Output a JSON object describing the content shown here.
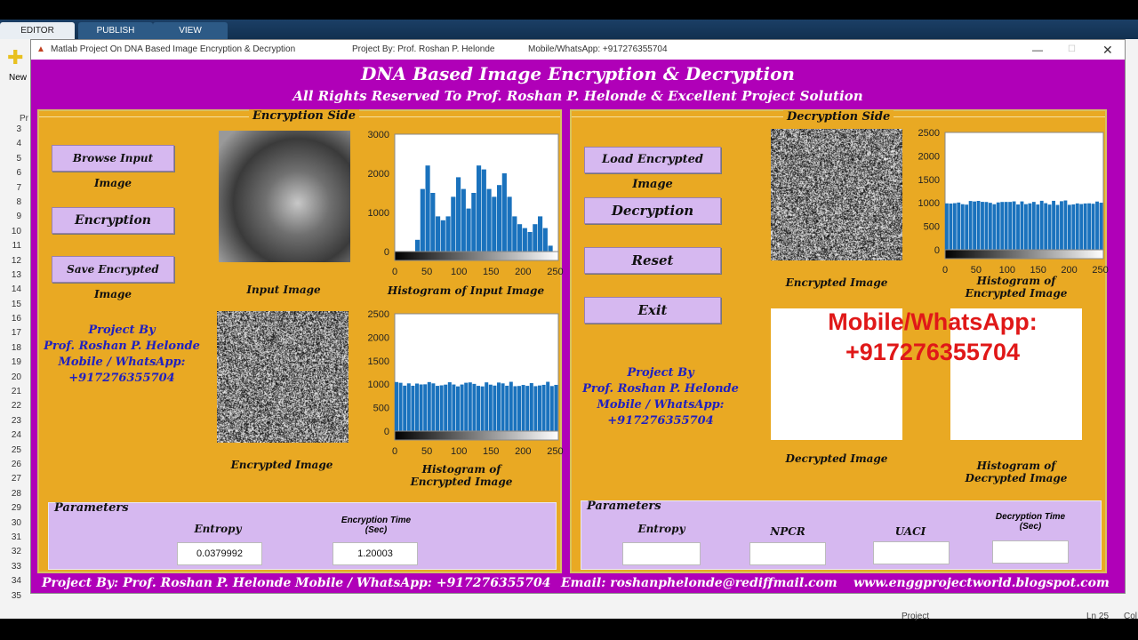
{
  "ide": {
    "tabs": [
      "EDITOR",
      "PUBLISH",
      "VIEW"
    ],
    "new_label": "New",
    "line_numbers": [
      "3",
      "4",
      "5",
      "6",
      "7",
      "8",
      "9",
      "10",
      "11",
      "12",
      "13",
      "14",
      "15",
      "16",
      "17",
      "18",
      "19",
      "20",
      "21",
      "22",
      "23",
      "24",
      "25",
      "26",
      "27",
      "28",
      "29",
      "30",
      "31",
      "32",
      "33",
      "34",
      "35"
    ],
    "status_project": "Project",
    "status_ln": "Ln 25",
    "status_col": "Col",
    "file_tab": "Pr"
  },
  "window": {
    "title": "Matlab Project On DNA Based Image Encryption & Decryption",
    "project_by": "Project By: Prof. Roshan P. Helonde",
    "mobile": "Mobile/WhatsApp: +917276355704"
  },
  "header": {
    "title": "DNA Based Image Encryption & Decryption",
    "subtitle": "All Rights Reserved To Prof. Roshan P. Helonde & Excellent Project Solution"
  },
  "encryption": {
    "title": "Encryption Side",
    "buttons": [
      "Browse Input Image",
      "Encryption",
      "Save Encrypted Image"
    ],
    "input_image_label": "Input Image",
    "input_hist_label": "Histogram of Input Image",
    "enc_image_label": "Encrypted Image",
    "enc_hist_label": "Histogram of Encrypted Image",
    "project_info": [
      "Project By",
      "Prof. Roshan P. Helonde",
      "Mobile / WhatsApp:",
      "+917276355704"
    ],
    "params": {
      "title": "Parameters",
      "entropy_label": "Entropy",
      "entropy_value": "0.0379992",
      "time_label": "Encryption Time (Sec)",
      "time_value": "1.20003"
    }
  },
  "decryption": {
    "title": "Decryption Side",
    "buttons": [
      "Load Encrypted Image",
      "Decryption",
      "Reset",
      "Exit"
    ],
    "enc_image_label": "Encrypted Image",
    "enc_hist_label": "Histogram of Encrypted Image",
    "dec_image_label": "Decrypted Image",
    "dec_hist_label": "Histogram of Decrypted Image",
    "project_info": [
      "Project By",
      "Prof. Roshan P. Helonde",
      "Mobile / WhatsApp:",
      "+917276355704"
    ],
    "watermark": [
      "Mobile/WhatsApp:",
      "+917276355704"
    ],
    "params": {
      "title": "Parameters",
      "entropy_label": "Entropy",
      "npcr_label": "NPCR",
      "uaci_label": "UACI",
      "time_label": "Decryption Time (Sec)",
      "entropy_value": "",
      "npcr_value": "",
      "uaci_value": "",
      "time_value": ""
    }
  },
  "footer": {
    "project": "Project By: Prof. Roshan P. Helonde",
    "mobile": "Mobile / WhatsApp: +917276355704",
    "email": "Email: roshanphelonde@rediffmail.com",
    "web": "www.enggprojectworld.blogspot.com"
  },
  "chart_data": [
    {
      "type": "bar",
      "title": "Histogram of Input Image",
      "xlim": [
        0,
        255
      ],
      "ylim": [
        0,
        3000
      ],
      "xticks": [
        "0",
        "50",
        "100",
        "150",
        "200",
        "250"
      ],
      "yticks": [
        "0",
        "1000",
        "2000",
        "3000"
      ],
      "bar_color": "#1a72bd",
      "values": [
        0,
        0,
        0,
        0,
        300,
        1600,
        2200,
        1500,
        900,
        800,
        900,
        1400,
        1900,
        1600,
        1100,
        1500,
        2200,
        2100,
        1600,
        1400,
        1700,
        2000,
        1400,
        900,
        700,
        600,
        500,
        700,
        900,
        600,
        150,
        0
      ]
    },
    {
      "type": "bar",
      "title": "Histogram of Encrypted Image",
      "xlim": [
        0,
        255
      ],
      "ylim": [
        0,
        2500
      ],
      "xticks": [
        "0",
        "50",
        "100",
        "150",
        "200",
        "250"
      ],
      "yticks": [
        "0",
        "500",
        "1000",
        "1500",
        "2000",
        "2500"
      ],
      "bar_color": "#1a72bd",
      "values_uniform": 1024
    },
    {
      "type": "bar",
      "title": "Histogram of Encrypted Image",
      "xlim": [
        0,
        255
      ],
      "ylim": [
        0,
        2500
      ],
      "xticks": [
        "0",
        "50",
        "100",
        "150",
        "200",
        "250"
      ],
      "yticks": [
        "0",
        "500",
        "1000",
        "1500",
        "2000",
        "2500"
      ],
      "bar_color": "#1a72bd",
      "values_uniform": 1024
    }
  ]
}
